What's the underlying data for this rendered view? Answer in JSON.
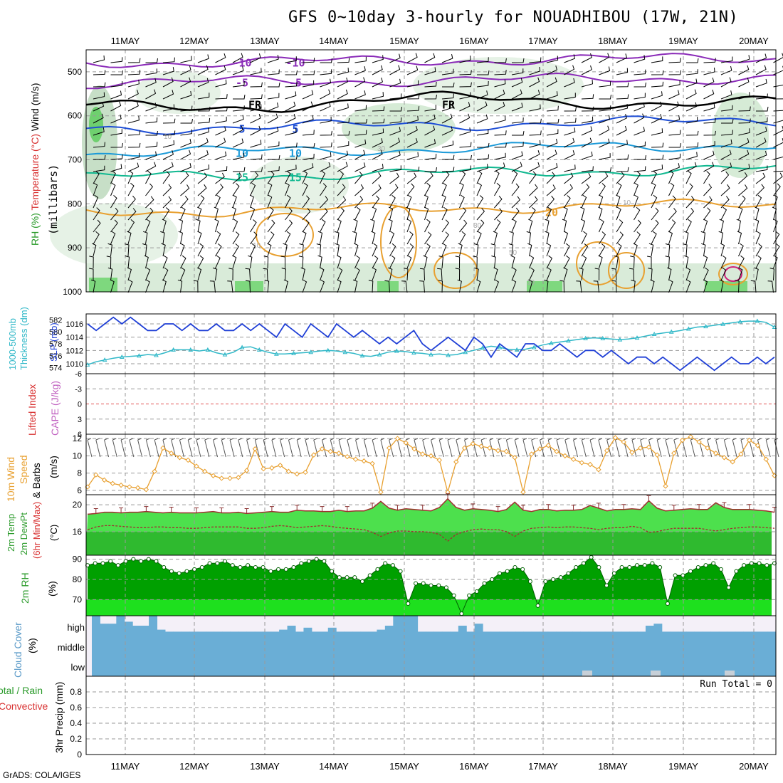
{
  "title": "GFS 0~10day 3-hourly for NOUADHIBOU (17W, 21N)",
  "credit": "GrADS: COLA/IGES",
  "dates": [
    "11MAY",
    "12MAY",
    "13MAY",
    "14MAY",
    "15MAY",
    "16MAY",
    "17MAY",
    "18MAY",
    "19MAY",
    "20MAY"
  ],
  "colors": {
    "rh_green": "#4dd24d",
    "temp_orange": "#e8a030",
    "cloud_blue": "#6aaed6",
    "slp_blue": "#1f3fd6",
    "thick_cyan": "#30b8c8",
    "wind_orange": "#e8a030"
  },
  "chart_data": [
    {
      "type": "contour",
      "panel": "upper-air",
      "ylabel_parts": [
        {
          "text": "Wind (m/s)",
          "color": "#000000"
        },
        {
          "text": "Temperature (°C)",
          "color": "#d83030"
        },
        {
          "text": "RH (%)",
          "color": "#2a9a2a"
        }
      ],
      "ylabel2": "(millibars)",
      "y_ticks": [
        "500",
        "600",
        "700",
        "800",
        "900",
        "1000"
      ],
      "ylim": [
        1000,
        450
      ],
      "isotherms": [
        {
          "label": "-10",
          "color": "#8a2ab8",
          "level": 480
        },
        {
          "label": "-5",
          "color": "#8a2ab8",
          "level": 525
        },
        {
          "label": "FR",
          "color": "#000000",
          "level": 575
        },
        {
          "label": "5",
          "color": "#1f4fd6",
          "level": 630
        },
        {
          "label": "10",
          "color": "#1c9ad8",
          "level": 685
        },
        {
          "label": "15",
          "color": "#10b890",
          "level": 740
        },
        {
          "label": "20",
          "color": "#e8a030",
          "level": 820
        }
      ],
      "rh_labels": [
        "10",
        "30",
        "50"
      ]
    },
    {
      "type": "line",
      "panel": "slp-thickness",
      "ylabel_left": "1000-500mb Thickness (dm)",
      "ylabel_right": "SLP (mb)",
      "left_ticks": [
        "582",
        "580",
        "578",
        "576",
        "574"
      ],
      "right_ticks": [
        "1016",
        "1014",
        "1012",
        "1010"
      ],
      "series": [
        {
          "name": "SLP",
          "color": "#1f3fd6",
          "values": [
            1016,
            1015,
            1016,
            1017,
            1016,
            1017,
            1016,
            1015,
            1015,
            1016,
            1016,
            1015,
            1016,
            1015,
            1015,
            1016,
            1015,
            1015,
            1016,
            1015,
            1016,
            1015,
            1014,
            1016,
            1015,
            1014,
            1016,
            1015,
            1014,
            1016,
            1015,
            1014,
            1015,
            1014,
            1013,
            1014,
            1013,
            1014,
            1015,
            1013,
            1012,
            1013,
            1014,
            1013,
            1012,
            1014,
            1013,
            1011,
            1013,
            1012,
            1011,
            1013,
            1013,
            1012,
            1012,
            1013,
            1012,
            1011,
            1012,
            1012,
            1011,
            1012,
            1011,
            1010,
            1011,
            1011,
            1010,
            1011,
            1010,
            1009,
            1010,
            1011,
            1010,
            1009,
            1010,
            1011,
            1010,
            1010,
            1011,
            1010,
            1011
          ]
        },
        {
          "name": "Thickness",
          "color": "#30b8c8",
          "values": [
            574.5,
            575,
            575.3,
            575.6,
            575.8,
            575.9,
            576,
            576.2,
            576.1,
            576.5,
            577,
            577,
            577,
            576.8,
            577,
            576.5,
            576.2,
            576.6,
            577.4,
            577.5,
            577,
            576.6,
            576.3,
            576.3,
            576.4,
            576.5,
            576.6,
            576.8,
            576.9,
            576.8,
            576.6,
            576.4,
            576,
            575.9,
            576.2,
            576.6,
            576.8,
            576.7,
            576.5,
            576.4,
            576.2,
            576.3,
            576.1,
            576.2,
            576.6,
            576.9,
            577.3,
            577.6,
            577.4,
            577.1,
            577,
            577.1,
            577.4,
            577.8,
            578.1,
            578.3,
            578.5,
            578.7,
            578.9,
            579,
            578.9,
            578.8,
            578.7,
            578.8,
            579.0,
            579.3,
            579.6,
            579.8,
            580,
            580.2,
            580.5,
            580.8,
            580.9,
            581.1,
            581.3,
            581.5,
            581.7,
            581.8,
            581.8,
            581.6,
            580.8
          ]
        }
      ]
    },
    {
      "type": "line",
      "panel": "stability",
      "ylabel_left": "Lifted Index",
      "ylabel_right": "CAPE (J/kg)",
      "ticks": [
        "-6",
        "-3",
        "0",
        "3",
        "6"
      ]
    },
    {
      "type": "line",
      "panel": "wind10m",
      "ylabel_parts": [
        "10m Wind",
        "Speed",
        "& Barbs",
        "(m/s)"
      ],
      "ticks": [
        "12",
        "10",
        "8",
        "6"
      ],
      "ylim": [
        5.5,
        12.5
      ],
      "series": [
        {
          "name": "Speed",
          "color": "#e8a030",
          "values": [
            6.4,
            7.8,
            7.2,
            6.8,
            6.6,
            6.4,
            6.3,
            6.1,
            8.2,
            10.9,
            10.3,
            9.8,
            9.5,
            8.8,
            8.2,
            7.7,
            7.4,
            7.4,
            7.5,
            8.3,
            10.8,
            8.5,
            8.6,
            8.9,
            8.2,
            7.9,
            8.1,
            10.1,
            10.8,
            10.5,
            10.3,
            9.9,
            9.6,
            9.4,
            9.1,
            5.8,
            10.9,
            12.0,
            11.5,
            10.8,
            10.2,
            10.0,
            9.5,
            5.8,
            9.3,
            10.9,
            11.4,
            11.1,
            10.9,
            10.6,
            10.5,
            9.8,
            5.8,
            10.2,
            10.8,
            11.2,
            10.5,
            10.0,
            9.6,
            9.2,
            9.0,
            8.4,
            10.6,
            12.1,
            11.6,
            10.4,
            10.9,
            11.0,
            10.1,
            6.5,
            10.3,
            11.8,
            12.2,
            11.6,
            10.9,
            10.3,
            9.8,
            9.3,
            10.2,
            11.8,
            11.2,
            9.6,
            7.7
          ]
        }
      ]
    },
    {
      "type": "area",
      "panel": "temp2m",
      "ylabel_parts": [
        "2m Temp",
        "2m DewPt",
        "(6hr Min/Max)",
        "(°C)"
      ],
      "ticks": [
        "20",
        "16"
      ],
      "series": [
        {
          "name": "Temp",
          "color": "#a03030",
          "values": [
            18.6,
            18.7,
            18.9,
            18.9,
            18.8,
            18.9,
            18.9,
            19.0,
            18.9,
            18.8,
            18.9,
            18.8,
            18.8,
            18.8,
            18.9,
            19.0,
            18.8,
            18.8,
            18.9,
            18.7,
            18.8,
            18.9,
            19.0,
            18.9,
            18.9,
            19.2,
            19.1,
            19.1,
            19.0,
            19.0,
            19.2,
            19.0,
            19.1,
            19.1,
            19.5,
            20.5,
            19.5,
            19.2,
            19.4,
            19.3,
            19.2,
            19.1,
            19.6,
            20.9,
            19.6,
            19.2,
            19.4,
            19.3,
            19.2,
            19.0,
            19.3,
            20.4,
            19.2,
            19.0,
            19.3,
            19.3,
            19.1,
            19.2,
            19.2,
            19.3,
            19.9,
            19.5,
            19.1,
            19.3,
            19.3,
            19.4,
            19.3,
            20.6,
            19.5,
            19.1,
            19.2,
            19.3,
            19.4,
            19.3,
            19.3,
            20.3,
            19.6,
            19.3,
            19.3,
            19.3,
            19.2,
            19.1,
            18.9
          ]
        },
        {
          "name": "DewPt",
          "color": "#a03030",
          "values": [
            16.3,
            16.7,
            16.9,
            16.9,
            16.8,
            16.7,
            16.6,
            16.6,
            16.7,
            16.7,
            16.6,
            16.6,
            16.5,
            16.5,
            16.6,
            16.7,
            16.7,
            16.7,
            16.7,
            16.5,
            16.5,
            16.6,
            16.8,
            16.9,
            16.8,
            16.6,
            16.7,
            16.8,
            16.9,
            16.8,
            16.6,
            16.5,
            16.4,
            16.3,
            15.9,
            15.3,
            15.8,
            16.1,
            16.1,
            16.0,
            16.0,
            15.9,
            15.6,
            14.6,
            15.6,
            16.0,
            16.3,
            16.4,
            16.3,
            16.3,
            16.0,
            15.3,
            16.1,
            16.5,
            16.6,
            16.7,
            16.6,
            16.7,
            16.7,
            16.6,
            16.5,
            16.3,
            16.5,
            16.6,
            16.6,
            16.8,
            16.6,
            15.9,
            16.0,
            16.3,
            16.5,
            16.5,
            16.5,
            16.5,
            16.3,
            16.1,
            16.3,
            16.5,
            16.6,
            16.7,
            16.7,
            16.6,
            16.5
          ]
        }
      ]
    },
    {
      "type": "area",
      "panel": "rh2m",
      "ylabel": "2m RH",
      "ylabel2": "(%)",
      "ticks": [
        "90",
        "80",
        "70"
      ],
      "ylim": [
        62,
        92
      ],
      "series": [
        {
          "name": "RH",
          "color": "#009900",
          "values": [
            87,
            88,
            88,
            89,
            87,
            89,
            90,
            89,
            90,
            89,
            86,
            84,
            83,
            84,
            85,
            86,
            88,
            88,
            89,
            87,
            86,
            87,
            86,
            86,
            84,
            85,
            85,
            86,
            88,
            89,
            90,
            89,
            84,
            81,
            81,
            81,
            79,
            82,
            85,
            88,
            87,
            84,
            68,
            78,
            78,
            77,
            77,
            76,
            72,
            63,
            72,
            74,
            78,
            80,
            83,
            84,
            86,
            85,
            79,
            67,
            79,
            80,
            81,
            83,
            86,
            88,
            91,
            86,
            77,
            83,
            86,
            86,
            87,
            87,
            88,
            86,
            68,
            82,
            82,
            84,
            86,
            87,
            88,
            85,
            76,
            84,
            87,
            88,
            88,
            87,
            88
          ]
        }
      ]
    },
    {
      "type": "area",
      "panel": "cloud",
      "ylabel": "Cloud Cover",
      "ylabel2": "(%)",
      "levels": [
        "high",
        "middle",
        "low"
      ],
      "color": "#6aaed6"
    },
    {
      "type": "bar",
      "panel": "precip",
      "ylabel_parts": [
        {
          "text": "Total / Rain",
          "color": "#2a9a2a"
        },
        {
          "text": "Convective",
          "color": "#d83030"
        }
      ],
      "ylabel2": "3hr Precip (mm)",
      "ticks": [
        "0.8",
        "0.6",
        "0.4",
        "0.2",
        "0"
      ],
      "ylim": [
        0,
        1
      ],
      "run_total": "Run Total = 0",
      "values": []
    }
  ]
}
